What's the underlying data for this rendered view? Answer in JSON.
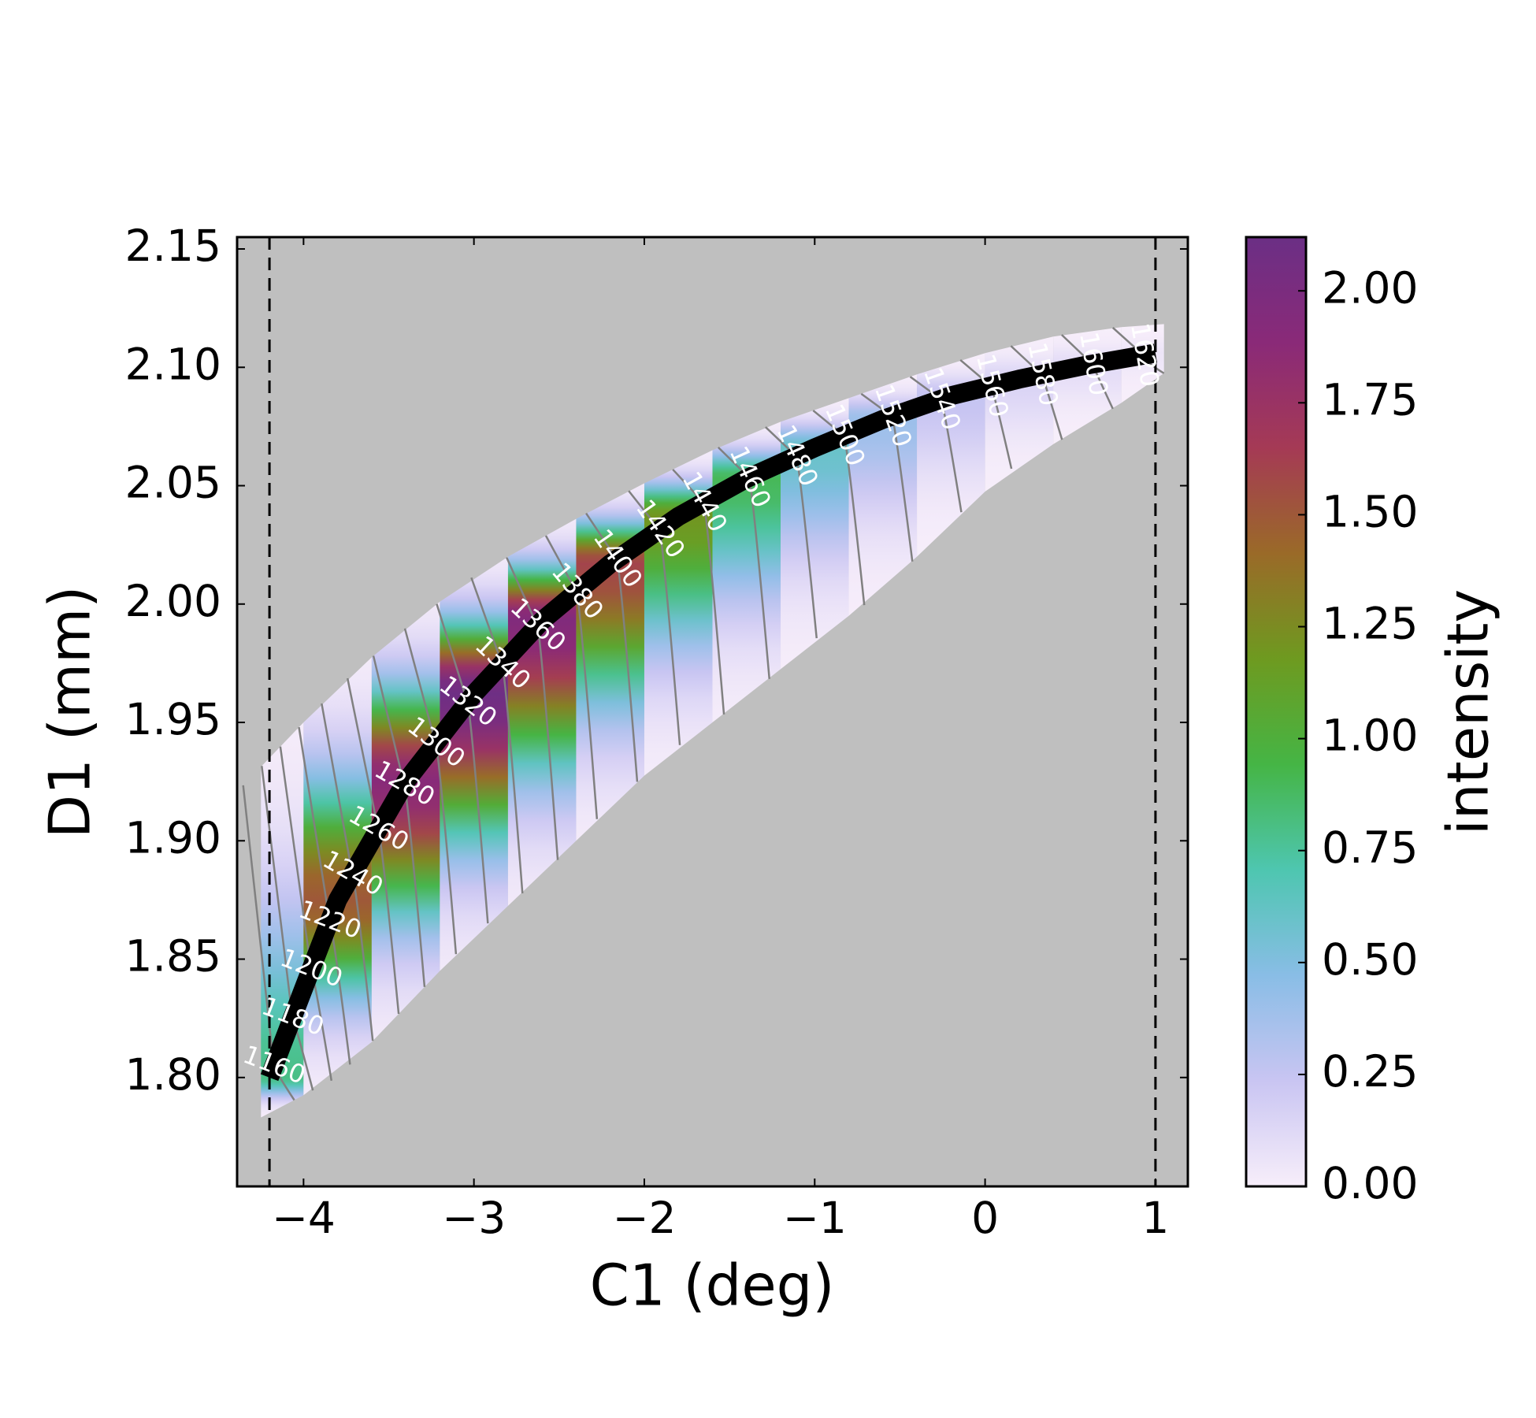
{
  "chart_data": {
    "type": "heatmap",
    "xlabel": "C1 (deg)",
    "ylabel": "D1 (mm)",
    "xlim": [
      -4.39,
      1.19
    ],
    "ylim": [
      1.754,
      2.155
    ],
    "xticks": [
      {
        "value": -4,
        "label": "−4"
      },
      {
        "value": -3,
        "label": "−3"
      },
      {
        "value": -2,
        "label": "−2"
      },
      {
        "value": -1,
        "label": "−1"
      },
      0,
      1
    ],
    "yticks": [
      {
        "value": 1.8,
        "label": "1.80"
      },
      {
        "value": 1.85,
        "label": "1.85"
      },
      {
        "value": 1.9,
        "label": "1.90"
      },
      {
        "value": 1.95,
        "label": "1.95"
      },
      {
        "value": 2.0,
        "label": "2.00"
      },
      {
        "value": 2.05,
        "label": "2.05"
      },
      {
        "value": 2.1,
        "label": "2.10"
      },
      {
        "value": 2.15,
        "label": "2.15"
      }
    ],
    "background": "#bfbfbf",
    "band": {
      "x": [
        -4.2,
        -3.8,
        -3.4,
        -3.0,
        -2.6,
        -2.2,
        -1.8,
        -1.4,
        -1.0,
        -0.6,
        -0.2,
        0.2,
        0.6,
        1.0
      ],
      "center": [
        1.8,
        1.875,
        1.925,
        1.962,
        1.993,
        2.017,
        2.037,
        2.053,
        2.066,
        2.078,
        2.088,
        2.095,
        2.101,
        2.106
      ],
      "upper": [
        1.935,
        1.965,
        1.99,
        2.012,
        2.028,
        2.044,
        2.058,
        2.072,
        2.082,
        2.092,
        2.102,
        2.11,
        2.116,
        2.118
      ],
      "lower": [
        1.785,
        1.8,
        1.83,
        1.86,
        1.885,
        1.915,
        1.94,
        1.96,
        1.985,
        2.005,
        2.035,
        2.06,
        2.075,
        2.095
      ],
      "peak": [
        0.8,
        1.5,
        1.9,
        2.1,
        1.95,
        1.6,
        1.2,
        0.9,
        0.6,
        0.4,
        0.25,
        0.15,
        0.1,
        0.05
      ]
    },
    "curve_color": "#000000",
    "vlines": [
      -4.2,
      1.0
    ],
    "contour_levels": [
      1160,
      1180,
      1200,
      1220,
      1240,
      1260,
      1280,
      1300,
      1320,
      1340,
      1360,
      1380,
      1400,
      1420,
      1440,
      1460,
      1480,
      1500,
      1520,
      1540,
      1560,
      1580,
      1600,
      1620
    ],
    "contour_color": "#808080",
    "contour_label_color": "#ffffff",
    "colorbar": {
      "label": "intensity",
      "clim": [
        0,
        2.12
      ],
      "ticks": [
        {
          "value": 0,
          "label": "0.00"
        },
        {
          "value": 0.25,
          "label": "0.25"
        },
        {
          "value": 0.5,
          "label": "0.50"
        },
        {
          "value": 0.75,
          "label": "0.75"
        },
        {
          "value": 1.0,
          "label": "1.00"
        },
        {
          "value": 1.25,
          "label": "1.25"
        },
        {
          "value": 1.5,
          "label": "1.50"
        },
        {
          "value": 1.75,
          "label": "1.75"
        },
        {
          "value": 2.0,
          "label": "2.00"
        }
      ],
      "colors": [
        "#f7eefa",
        "#c9c5f2",
        "#89bde6",
        "#4ec6b0",
        "#45b545",
        "#6e9a20",
        "#9a6a28",
        "#a53a55",
        "#8a2a78",
        "#6b2f85"
      ]
    }
  }
}
